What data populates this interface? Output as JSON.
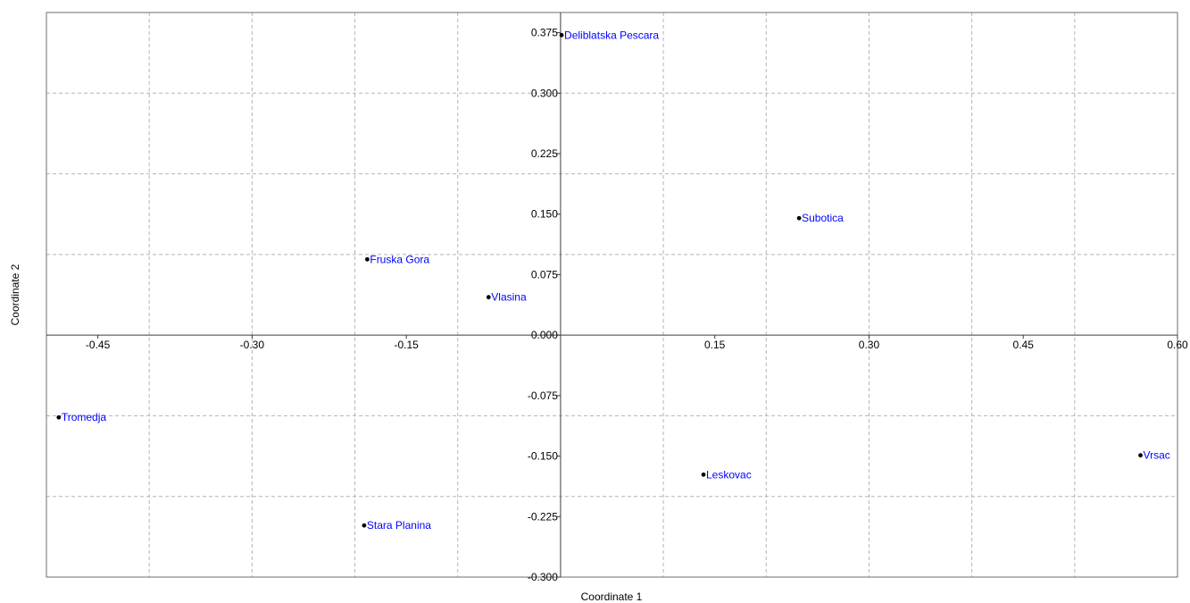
{
  "chart_data": {
    "type": "scatter",
    "title": "",
    "xlabel": "Coordinate 1",
    "ylabel": "Coordinate 2",
    "xlim": [
      -0.5,
      0.6
    ],
    "ylim": [
      -0.3,
      0.4
    ],
    "x_ticks": [
      -0.45,
      -0.3,
      -0.15,
      0.15,
      0.3,
      0.45,
      0.6
    ],
    "x_tick_labels": [
      "-0.45",
      "-0.30",
      "-0.15",
      "0.15",
      "0.30",
      "0.45",
      "0.60"
    ],
    "y_ticks": [
      0.375,
      0.3,
      0.225,
      0.15,
      0.075,
      0.0,
      -0.075,
      -0.15,
      -0.225,
      -0.3
    ],
    "y_tick_labels": [
      "0.375",
      "0.300",
      "0.225",
      "0.150",
      "0.075",
      "0.000",
      "-0.075",
      "-0.150",
      "-0.225",
      "-0.300"
    ],
    "grid": true,
    "point_color": "#000000",
    "label_color": "#0000ff",
    "points": [
      {
        "label": "Deliblatska Pescara",
        "x": 0.001,
        "y": 0.372
      },
      {
        "label": "Subotica",
        "x": 0.232,
        "y": 0.145
      },
      {
        "label": "Fruska Gora",
        "x": -0.188,
        "y": 0.094
      },
      {
        "label": "Vlasina",
        "x": -0.07,
        "y": 0.047
      },
      {
        "label": "Tromedja",
        "x": -0.488,
        "y": -0.102
      },
      {
        "label": "Vrsac",
        "x": 0.564,
        "y": -0.149
      },
      {
        "label": "Leskovac",
        "x": 0.139,
        "y": -0.173
      },
      {
        "label": "Stara Planina",
        "x": -0.191,
        "y": -0.236
      }
    ]
  }
}
